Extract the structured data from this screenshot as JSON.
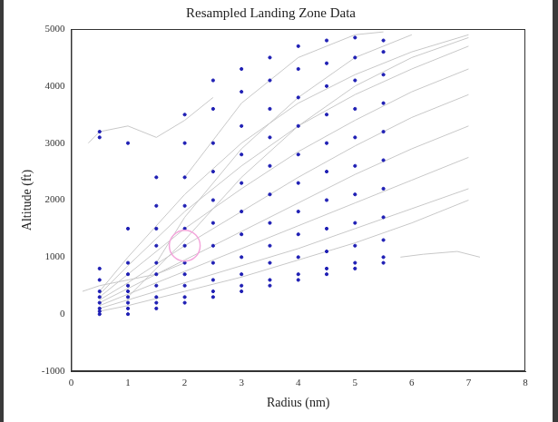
{
  "chart_data": {
    "type": "scatter",
    "title": "Resampled Landing Zone Data",
    "x_label": "Radius (nm)",
    "y_label": "Altitude (ft)",
    "xlim": [
      0,
      8
    ],
    "xticks": [
      0,
      1,
      2,
      3,
      4,
      5,
      6,
      7,
      8
    ],
    "ylim": [
      -1000,
      5000
    ],
    "yticks": [
      -1000,
      0,
      1000,
      2000,
      3000,
      4000,
      5000
    ],
    "grid": false,
    "series": [
      {
        "type": "line",
        "color": "#c8c8c8",
        "line_style": "solid",
        "x": [
          0.5,
          1,
          2,
          3,
          4,
          5,
          6,
          7,
          null,
          0.5,
          1,
          2,
          3,
          4,
          5,
          6,
          7,
          null,
          0.5,
          1,
          2,
          3,
          4,
          5,
          6,
          7,
          null,
          0.5,
          1,
          2,
          3,
          4,
          5,
          6,
          7,
          null,
          0.5,
          1,
          2,
          3,
          4,
          5,
          6,
          7,
          null,
          0.5,
          1,
          2,
          3,
          4,
          5,
          6,
          7,
          null,
          0.5,
          1,
          2,
          3,
          4,
          5,
          6,
          7,
          null,
          0.5,
          1,
          2,
          3,
          4,
          5,
          6,
          7,
          null,
          1,
          2,
          3,
          4,
          5,
          6,
          7,
          null,
          1.5,
          2,
          3,
          4,
          5,
          6,
          null,
          2,
          3,
          4,
          5,
          5.5,
          null,
          0.3,
          0.5,
          1,
          1.5,
          2,
          2.5,
          null,
          0.2,
          0.5,
          1,
          1.5,
          2,
          null,
          5.8,
          6.2,
          6.8,
          7.2
        ],
        "values": [
          50,
          150,
          400,
          650,
          950,
          1250,
          1600,
          2000,
          null,
          100,
          250,
          550,
          850,
          1150,
          1500,
          1850,
          2200,
          null,
          150,
          350,
          750,
          1150,
          1550,
          1950,
          2350,
          2750,
          null,
          200,
          450,
          950,
          1450,
          1950,
          2450,
          2900,
          3300,
          null,
          250,
          550,
          1200,
          1800,
          2400,
          2950,
          3450,
          3850,
          null,
          300,
          700,
          1500,
          2200,
          2850,
          3400,
          3900,
          4300,
          null,
          350,
          850,
          1800,
          2600,
          3300,
          3850,
          4300,
          4700,
          null,
          400,
          1000,
          2100,
          3000,
          3700,
          4200,
          4600,
          4900,
          null,
          300,
          1300,
          2400,
          3300,
          4000,
          4500,
          4850,
          null,
          900,
          1700,
          2900,
          3800,
          4500,
          4900,
          null,
          2400,
          3700,
          4500,
          4900,
          4950,
          null,
          3000,
          3200,
          3300,
          3100,
          3400,
          3800,
          null,
          400,
          500,
          600,
          700,
          900,
          null,
          1000,
          1050,
          1100,
          1000
        ]
      },
      {
        "type": "scatter",
        "color": "#1f1fb4",
        "marker": "point",
        "x": [
          0.5,
          0.5,
          0.5,
          0.5,
          0.5,
          0.5,
          0.5,
          0.5,
          0.5,
          0.5,
          1,
          1,
          1,
          1,
          1,
          1,
          1,
          1,
          1,
          1,
          1.5,
          1.5,
          1.5,
          1.5,
          1.5,
          1.5,
          1.5,
          1.5,
          1.5,
          1.5,
          2,
          2,
          2,
          2,
          2,
          2,
          2,
          2,
          2,
          2,
          2,
          2.5,
          2.5,
          2.5,
          2.5,
          2.5,
          2.5,
          2.5,
          2.5,
          2.5,
          2.5,
          2.5,
          3,
          3,
          3,
          3,
          3,
          3,
          3,
          3,
          3,
          3,
          3,
          3.5,
          3.5,
          3.5,
          3.5,
          3.5,
          3.5,
          3.5,
          3.5,
          3.5,
          3.5,
          3.5,
          4,
          4,
          4,
          4,
          4,
          4,
          4,
          4,
          4,
          4,
          4,
          4.5,
          4.5,
          4.5,
          4.5,
          4.5,
          4.5,
          4.5,
          4.5,
          4.5,
          4.5,
          4.5,
          5,
          5,
          5,
          5,
          5,
          5,
          5,
          5,
          5,
          5,
          5,
          5.5,
          5.5,
          5.5,
          5.5,
          5.5,
          5.5,
          5.5,
          5.5,
          5.5,
          5.5,
          5.5
        ],
        "values": [
          0,
          50,
          100,
          200,
          300,
          400,
          600,
          800,
          3100,
          3200,
          0,
          100,
          200,
          300,
          400,
          500,
          700,
          900,
          1500,
          3000,
          100,
          200,
          300,
          500,
          700,
          900,
          1200,
          1500,
          1900,
          2400,
          200,
          300,
          500,
          700,
          900,
          1200,
          1500,
          1900,
          2400,
          3000,
          3500,
          300,
          400,
          600,
          900,
          1200,
          1600,
          2000,
          2500,
          3000,
          3600,
          4100,
          400,
          500,
          700,
          1000,
          1400,
          1800,
          2300,
          2800,
          3300,
          3900,
          4300,
          500,
          600,
          900,
          1200,
          1600,
          2100,
          2600,
          3100,
          3600,
          4100,
          4500,
          600,
          700,
          1000,
          1400,
          1800,
          2300,
          2800,
          3300,
          3800,
          4300,
          4700,
          700,
          800,
          1100,
          1500,
          2000,
          2500,
          3000,
          3500,
          4000,
          4400,
          4800,
          800,
          900,
          1200,
          1600,
          2100,
          2600,
          3100,
          3600,
          4100,
          4500,
          4850,
          900,
          1000,
          1300,
          1700,
          2200,
          2700,
          3200,
          3700,
          4200,
          4600,
          4800
        ]
      },
      {
        "type": "scatter",
        "color": "#f4a6dc",
        "marker": "circle_open",
        "x": [
          2
        ],
        "values": [
          1200
        ]
      }
    ]
  }
}
